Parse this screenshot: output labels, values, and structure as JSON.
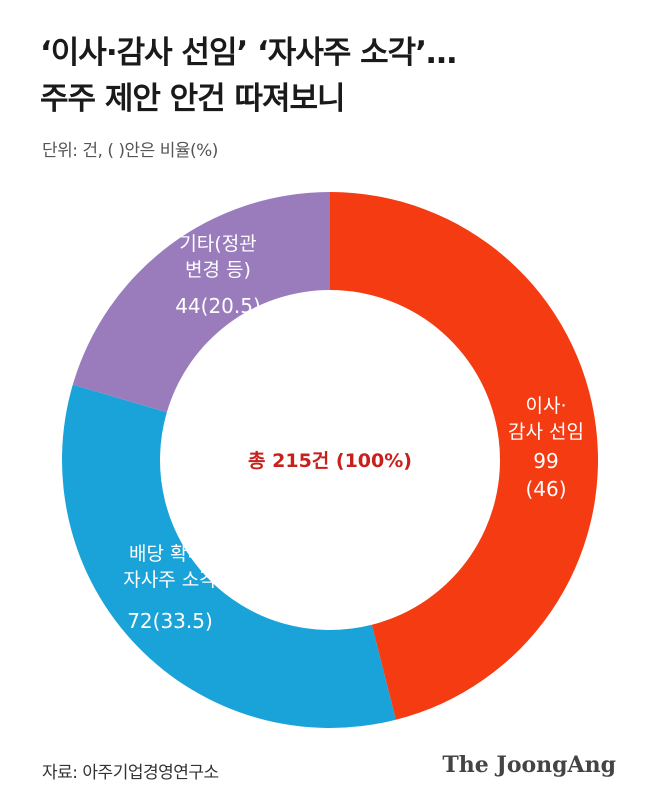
{
  "header": {
    "title_line1": "‘이사·감사 선임’ ‘자사주 소각’…",
    "title_line2": "주주 제안 안건 따져보니",
    "unit": "단위: 건, ( )안은 비율(%)"
  },
  "chart_data": {
    "type": "pie",
    "donut": true,
    "center_label": "총 215건 (100%)",
    "total": 215,
    "slices": [
      {
        "label_lines": [
          "이사·",
          "감사 선임"
        ],
        "value": 99,
        "percent": 46,
        "value_lines": [
          "99",
          "(46)"
        ],
        "color": "#f43b12"
      },
      {
        "label_lines": [
          "배당 확대·",
          "자사주 소각"
        ],
        "value": 72,
        "percent": 33.5,
        "value_lines": [
          "72(33.5)"
        ],
        "color": "#1aa3d8"
      },
      {
        "label_lines": [
          "기타(정관",
          "변경 등)"
        ],
        "value": 44,
        "percent": 20.5,
        "value_lines": [
          "44(20.5)"
        ],
        "color": "#9a7cbd"
      }
    ],
    "center_color": "#c8211d"
  },
  "footer": {
    "source": "자료: 아주기업경영연구소",
    "brand": "The JoongAng"
  }
}
